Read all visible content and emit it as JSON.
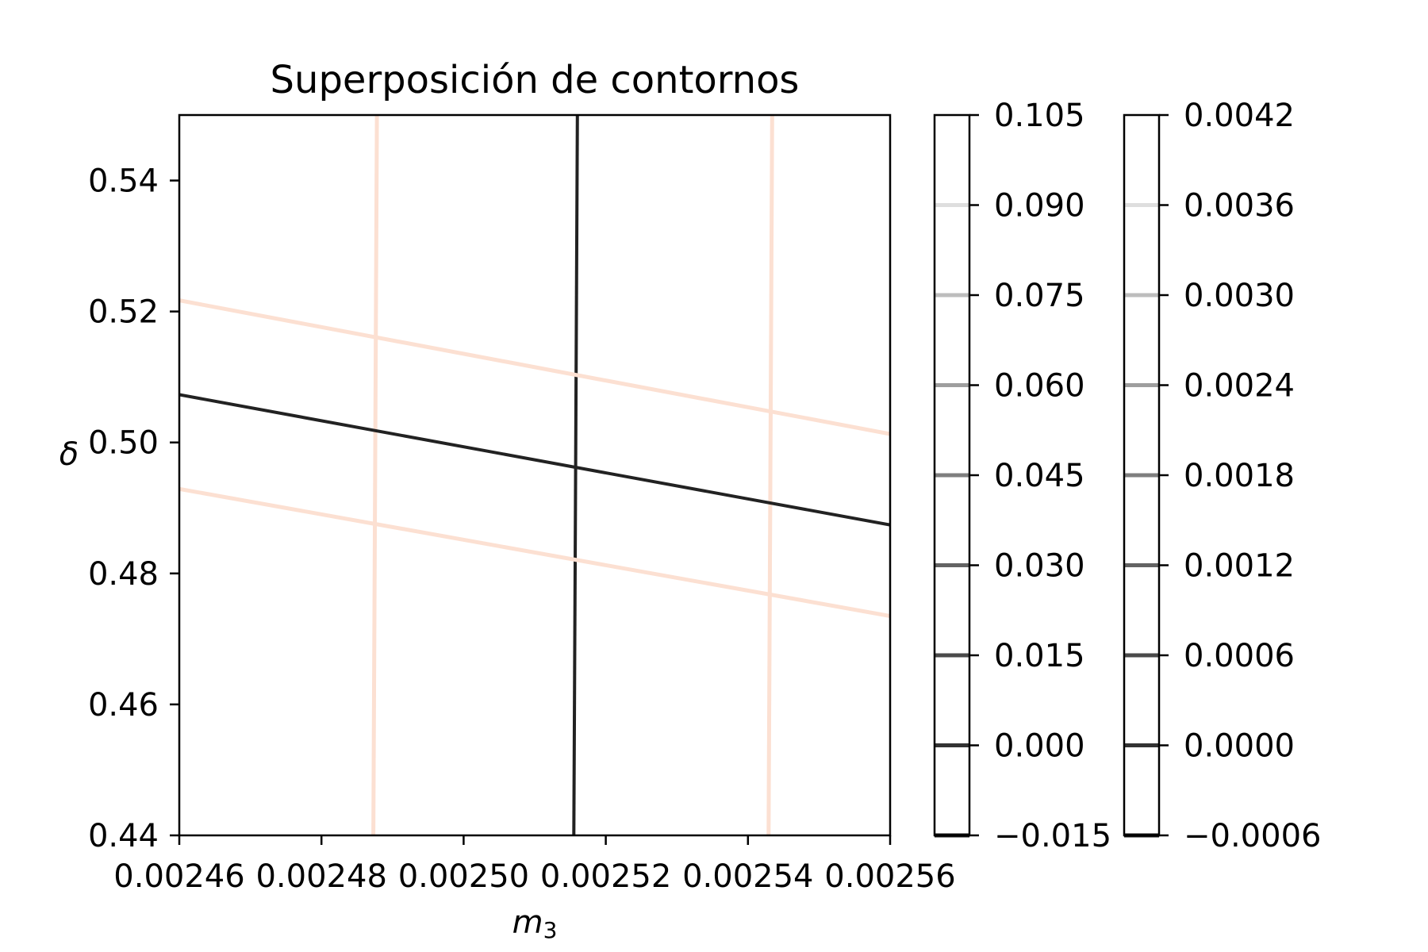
{
  "chart_data": {
    "type": "line",
    "title": "Superposición de contornos",
    "xlabel": {
      "main": "m",
      "sub": "3"
    },
    "ylabel": "δ",
    "xlim": [
      0.00246,
      0.00256
    ],
    "ylim": [
      0.44,
      0.55
    ],
    "x_ticks": [
      {
        "value": 0.00246,
        "label": "0.00246"
      },
      {
        "value": 0.00248,
        "label": "0.00248"
      },
      {
        "value": 0.0025,
        "label": "0.00250"
      },
      {
        "value": 0.00252,
        "label": "0.00252"
      },
      {
        "value": 0.00254,
        "label": "0.00254"
      },
      {
        "value": 0.00256,
        "label": "0.00256"
      }
    ],
    "y_ticks": [
      {
        "value": 0.44,
        "label": "0.44"
      },
      {
        "value": 0.46,
        "label": "0.46"
      },
      {
        "value": 0.48,
        "label": "0.48"
      },
      {
        "value": 0.5,
        "label": "0.50"
      },
      {
        "value": 0.52,
        "label": "0.52"
      },
      {
        "value": 0.54,
        "label": "0.54"
      }
    ],
    "grid": false,
    "contour_lines": [
      {
        "color": "#fce0d2",
        "points": [
          [
            0.0024878,
            0.55
          ],
          [
            0.0024873,
            0.44
          ]
        ]
      },
      {
        "color": "#fce0d2",
        "points": [
          [
            0.0025434,
            0.55
          ],
          [
            0.0025429,
            0.44
          ]
        ]
      },
      {
        "color": "#222222",
        "points": [
          [
            0.002516,
            0.55
          ],
          [
            0.0025155,
            0.44
          ]
        ]
      },
      {
        "color": "#fce0d2",
        "points": [
          [
            0.00246,
            0.5217
          ],
          [
            0.00256,
            0.5013
          ]
        ]
      },
      {
        "color": "#222222",
        "points": [
          [
            0.00246,
            0.5073
          ],
          [
            0.00256,
            0.4874
          ]
        ]
      },
      {
        "color": "#fce0d2",
        "points": [
          [
            0.00246,
            0.4929
          ],
          [
            0.00256,
            0.4735
          ]
        ]
      }
    ],
    "colorbars": [
      {
        "range": [
          -0.015,
          0.105
        ],
        "ticks": [
          {
            "value": -0.015,
            "label": "−0.015"
          },
          {
            "value": 0.0,
            "label": "0.000"
          },
          {
            "value": 0.015,
            "label": "0.015"
          },
          {
            "value": 0.03,
            "label": "0.030"
          },
          {
            "value": 0.045,
            "label": "0.045"
          },
          {
            "value": 0.06,
            "label": "0.060"
          },
          {
            "value": 0.075,
            "label": "0.075"
          },
          {
            "value": 0.09,
            "label": "0.090"
          },
          {
            "value": 0.105,
            "label": "0.105"
          }
        ],
        "levels": [
          {
            "value": -0.015,
            "color": "#111111"
          },
          {
            "value": 0.0,
            "color": "#333333"
          },
          {
            "value": 0.015,
            "color": "#4a4a4a"
          },
          {
            "value": 0.03,
            "color": "#636363"
          },
          {
            "value": 0.045,
            "color": "#7f7f7f"
          },
          {
            "value": 0.06,
            "color": "#9e9e9e"
          },
          {
            "value": 0.075,
            "color": "#bdbdbd"
          },
          {
            "value": 0.09,
            "color": "#dedede"
          }
        ]
      },
      {
        "range": [
          -0.0006,
          0.0042
        ],
        "ticks": [
          {
            "value": -0.0006,
            "label": "−0.0006"
          },
          {
            "value": 0.0,
            "label": "0.0000"
          },
          {
            "value": 0.0006,
            "label": "0.0006"
          },
          {
            "value": 0.0012,
            "label": "0.0012"
          },
          {
            "value": 0.0018,
            "label": "0.0018"
          },
          {
            "value": 0.0024,
            "label": "0.0024"
          },
          {
            "value": 0.003,
            "label": "0.0030"
          },
          {
            "value": 0.0036,
            "label": "0.0036"
          },
          {
            "value": 0.0042,
            "label": "0.0042"
          }
        ],
        "levels": [
          {
            "value": -0.0006,
            "color": "#111111"
          },
          {
            "value": 0.0,
            "color": "#333333"
          },
          {
            "value": 0.0006,
            "color": "#4a4a4a"
          },
          {
            "value": 0.0012,
            "color": "#636363"
          },
          {
            "value": 0.0018,
            "color": "#7f7f7f"
          },
          {
            "value": 0.0024,
            "color": "#9e9e9e"
          },
          {
            "value": 0.003,
            "color": "#bdbdbd"
          },
          {
            "value": 0.0036,
            "color": "#dedede"
          }
        ]
      }
    ]
  }
}
